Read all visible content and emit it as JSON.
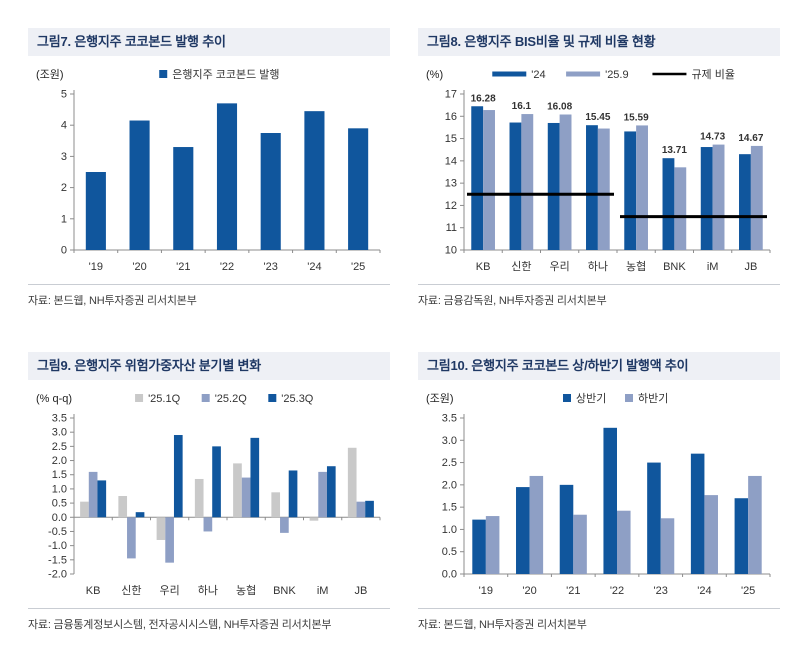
{
  "colors": {
    "dark_blue": "#10569D",
    "light_blue": "#8E9FC5",
    "gray_bar": "#C9C9C9",
    "regulation_line": "#000000",
    "title_bg": "#EEF0F5",
    "title_text": "#1F3864"
  },
  "chart_data": [
    {
      "type": "bar",
      "title": "그림7. 은행지주 코코본드 발행 추이",
      "unit": "(조원)",
      "source": "자료: 본드웹, NH투자증권 리서치본부",
      "categories": [
        "'19",
        "'20",
        "'21",
        "'22",
        "'23",
        "'24",
        "'25"
      ],
      "series": [
        {
          "name": "은행지주 코코본드 발행",
          "color": "#10569D",
          "values": [
            2.5,
            4.15,
            3.3,
            4.7,
            3.75,
            4.45,
            3.9
          ]
        }
      ],
      "ylim": [
        0,
        5
      ],
      "ytick": 1,
      "ydecimals": 0,
      "grid": false,
      "legend_style": "square",
      "legend_position": "top"
    },
    {
      "type": "bar",
      "title": "그림8. 은행지주 BIS비율 및 규제 비율 현황",
      "unit": "(%)",
      "source": "자료: 금융감독원, NH투자증권 리서치본부",
      "categories": [
        "KB",
        "신한",
        "우리",
        "하나",
        "농협",
        "BNK",
        "iM",
        "JB"
      ],
      "series": [
        {
          "name": "'24",
          "color": "#10569D",
          "values": [
            16.45,
            15.72,
            15.7,
            15.6,
            15.32,
            14.12,
            14.62,
            14.3
          ]
        },
        {
          "name": "'25.9",
          "color": "#8E9FC5",
          "values": [
            16.28,
            16.1,
            16.08,
            15.45,
            15.59,
            13.71,
            14.73,
            14.67
          ]
        }
      ],
      "data_labels": [
        "16.28",
        "16.1",
        "16.08",
        "15.45",
        "15.59",
        "13.71",
        "14.73",
        "14.67"
      ],
      "overlay_lines": [
        {
          "name": "규제 비율",
          "y": 12.5,
          "from": 0,
          "to": 3,
          "color": "#000000"
        },
        {
          "name": "규제 비율",
          "y": 11.5,
          "from": 4,
          "to": 7,
          "color": "#000000"
        }
      ],
      "overlay_legend": "규제 비율",
      "ylim": [
        10,
        17
      ],
      "ytick": 1,
      "ydecimals": 0,
      "grid": false,
      "legend_style": "line",
      "legend_position": "top"
    },
    {
      "type": "bar",
      "title": "그림9. 은행지주 위험가중자산 분기별 변화",
      "unit": "(% q-q)",
      "source": "자료: 금융통계정보시스템, 전자공시시스템, NH투자증권 리서치본부",
      "categories": [
        "KB",
        "신한",
        "우리",
        "하나",
        "농협",
        "BNK",
        "iM",
        "JB"
      ],
      "series": [
        {
          "name": "'25.1Q",
          "color": "#C9C9C9",
          "values": [
            0.55,
            0.75,
            -0.8,
            1.35,
            1.9,
            0.88,
            -0.12,
            2.45
          ]
        },
        {
          "name": "'25.2Q",
          "color": "#8E9FC5",
          "values": [
            1.6,
            -1.45,
            -1.6,
            -0.5,
            1.4,
            -0.55,
            1.6,
            0.55
          ]
        },
        {
          "name": "'25.3Q",
          "color": "#10569D",
          "values": [
            1.3,
            0.18,
            2.9,
            2.5,
            2.8,
            1.65,
            1.8,
            0.58
          ]
        }
      ],
      "ylim": [
        -2.0,
        3.5
      ],
      "ytick": 0.5,
      "ydecimals": 1,
      "grid": false,
      "legend_style": "square",
      "legend_position": "top"
    },
    {
      "type": "bar",
      "title": "그림10. 은행지주 코코본드 상/하반기 발행액 추이",
      "unit": "(조원)",
      "source": "자료: 본드웹, NH투자증권 리서치본부",
      "categories": [
        "'19",
        "'20",
        "'21",
        "'22",
        "'23",
        "'24",
        "'25"
      ],
      "series": [
        {
          "name": "상반기",
          "color": "#10569D",
          "values": [
            1.22,
            1.95,
            2.0,
            3.28,
            2.5,
            2.7,
            1.7
          ]
        },
        {
          "name": "하반기",
          "color": "#8E9FC5",
          "values": [
            1.3,
            2.2,
            1.33,
            1.42,
            1.25,
            1.77,
            2.2
          ]
        }
      ],
      "ylim": [
        0,
        3.5
      ],
      "ytick": 0.5,
      "ydecimals": 1,
      "grid": false,
      "legend_style": "square",
      "legend_position": "top"
    }
  ]
}
